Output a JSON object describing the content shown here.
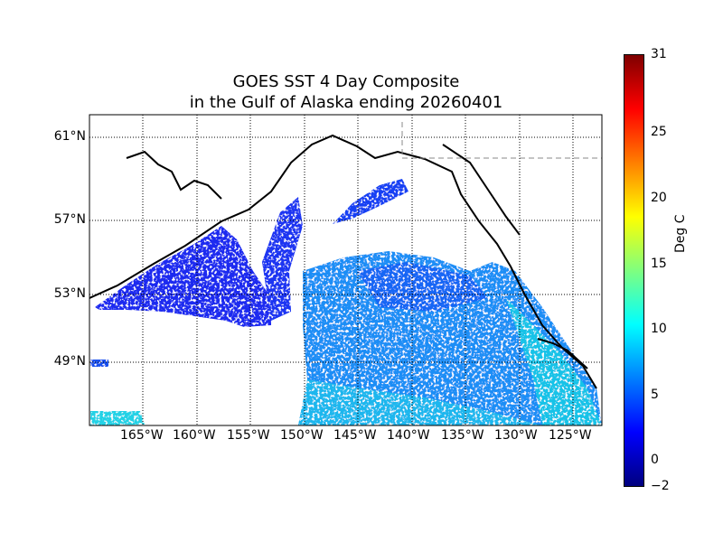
{
  "title": {
    "line1": "GOES SST 4 Day Composite",
    "line2": "in the Gulf of Alaska ending 20260401"
  },
  "lat_labels": [
    "61°N",
    "57°N",
    "53°N",
    "49°N"
  ],
  "lon_labels": [
    "165°W",
    "160°W",
    "155°W",
    "150°W",
    "145°W",
    "140°W",
    "135°W",
    "130°W",
    "125°W"
  ],
  "colorbar": {
    "label": "Deg C",
    "ticks": [
      "31",
      "25",
      "20",
      "15",
      "10",
      "5",
      "0",
      "−2"
    ],
    "range": [
      -2,
      31
    ],
    "colormap": "jet",
    "colors": [
      "#00007f",
      "#0000ff",
      "#007fff",
      "#00ffff",
      "#7fff7f",
      "#ffff00",
      "#ff7f00",
      "#ff0000",
      "#7f0000"
    ]
  },
  "map": {
    "grid": "dotted",
    "land_color": "#ffffff",
    "coastline_color": "#000000"
  }
}
